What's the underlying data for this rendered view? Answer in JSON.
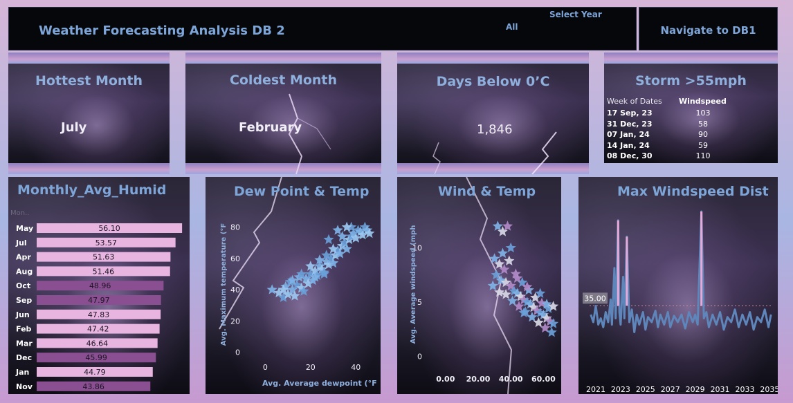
{
  "header": {
    "title": "Weather Forecasting Analysis DB 2",
    "select_year_label": "Select Year",
    "select_year_value": "All",
    "nav_button": "Navigate to DB1"
  },
  "kpis": {
    "hottest": {
      "title": "Hottest Month",
      "value": "July"
    },
    "coldest": {
      "title": "Coldest Month",
      "value": "February"
    },
    "below_zero": {
      "title": "Days Below 0’C",
      "value": "1,846"
    }
  },
  "storm": {
    "title": "Storm >55mph",
    "col_date": "Week of Dates",
    "col_wind": "Windspeed",
    "rows": [
      {
        "date": "17 Sep, 23",
        "wind": "103"
      },
      {
        "date": "31 Dec, 23",
        "wind": "58"
      },
      {
        "date": "07 Jan, 24",
        "wind": "90"
      },
      {
        "date": "14 Jan, 24",
        "wind": "59"
      },
      {
        "date": "08 Dec, 30",
        "wind": "110"
      }
    ]
  },
  "colors": {
    "title": "#7da5d8",
    "bar_light": "#e8b4e0",
    "bar_dark": "#8a4f90",
    "line": "#5f86bb",
    "spike": "#e6a9d8"
  },
  "chart_data": [
    {
      "type": "bar",
      "title": "Monthly_Avg_Humid",
      "header_label": "Mon..",
      "orientation": "horizontal",
      "categories": [
        "May",
        "Jul",
        "Apr",
        "Aug",
        "Oct",
        "Sep",
        "Jun",
        "Feb",
        "Mar",
        "Dec",
        "Jan",
        "Nov"
      ],
      "values": [
        56.1,
        53.57,
        51.63,
        51.46,
        48.96,
        47.97,
        47.83,
        47.42,
        46.64,
        45.99,
        44.79,
        43.86
      ],
      "value_labels": [
        "56.10",
        "53.57",
        "51.63",
        "51.46",
        "48.96",
        "47.97",
        "47.83",
        "47.42",
        "46.64",
        "45.99",
        "44.79",
        "43.86"
      ],
      "shade": [
        "light",
        "light",
        "light",
        "light",
        "dark",
        "dark",
        "light",
        "light",
        "light",
        "dark",
        "light",
        "dark"
      ]
    },
    {
      "type": "scatter",
      "title": "Dew Point & Temp",
      "xlabel": "Avg. Average dewpoint (°F",
      "ylabel": "Avg. Maximum temperature (°F",
      "xticks": [
        "0",
        "20",
        "40"
      ],
      "yticks": [
        "0",
        "20",
        "40",
        "60",
        "80"
      ],
      "xlim": [
        -5,
        50
      ],
      "ylim": [
        -5,
        90
      ],
      "points": [
        [
          3,
          40
        ],
        [
          6,
          38
        ],
        [
          8,
          35
        ],
        [
          9,
          42
        ],
        [
          10,
          37
        ],
        [
          11,
          45
        ],
        [
          12,
          40
        ],
        [
          13,
          36
        ],
        [
          14,
          43
        ],
        [
          15,
          48
        ],
        [
          16,
          41
        ],
        [
          17,
          39
        ],
        [
          18,
          47
        ],
        [
          19,
          44
        ],
        [
          20,
          50
        ],
        [
          21,
          46
        ],
        [
          22,
          52
        ],
        [
          23,
          49
        ],
        [
          24,
          55
        ],
        [
          25,
          53
        ],
        [
          26,
          51
        ],
        [
          27,
          58
        ],
        [
          28,
          56
        ],
        [
          29,
          60
        ],
        [
          30,
          57
        ],
        [
          31,
          62
        ],
        [
          32,
          65
        ],
        [
          33,
          63
        ],
        [
          34,
          68
        ],
        [
          35,
          70
        ],
        [
          36,
          66
        ],
        [
          37,
          72
        ],
        [
          38,
          74
        ],
        [
          39,
          76
        ],
        [
          40,
          73
        ],
        [
          41,
          78
        ],
        [
          42,
          77
        ],
        [
          43,
          75
        ],
        [
          44,
          80
        ],
        [
          45,
          78
        ],
        [
          46,
          76
        ],
        [
          38,
          80
        ],
        [
          34,
          74
        ],
        [
          30,
          66
        ],
        [
          27,
          62
        ],
        [
          24,
          59
        ],
        [
          20,
          55
        ],
        [
          16,
          50
        ],
        [
          12,
          46
        ],
        [
          8,
          40
        ],
        [
          28,
          72
        ],
        [
          32,
          78
        ],
        [
          36,
          80
        ],
        [
          26,
          50
        ],
        [
          22,
          48
        ]
      ]
    },
    {
      "type": "scatter",
      "title": "Wind & Temp",
      "xlabel": "",
      "ylabel": "Avg. Average windspeed (mph",
      "xticks": [
        "0.00",
        "20.00",
        "40.00",
        "60.00"
      ],
      "yticks": [
        "0",
        "5",
        "10"
      ],
      "xlim": [
        -5,
        70
      ],
      "ylim": [
        -1,
        14
      ],
      "points": [
        [
          32,
          12
        ],
        [
          35,
          11.5
        ],
        [
          38,
          12
        ],
        [
          40,
          10
        ],
        [
          30,
          9
        ],
        [
          33,
          8.5
        ],
        [
          36,
          8
        ],
        [
          31,
          7.5
        ],
        [
          34,
          7
        ],
        [
          37,
          6.8
        ],
        [
          40,
          6.5
        ],
        [
          42,
          6
        ],
        [
          44,
          5.8
        ],
        [
          46,
          5.5
        ],
        [
          48,
          5.2
        ],
        [
          50,
          5
        ],
        [
          52,
          4.8
        ],
        [
          54,
          4.5
        ],
        [
          56,
          4.2
        ],
        [
          58,
          4
        ],
        [
          60,
          3.8
        ],
        [
          62,
          3.5
        ],
        [
          64,
          3.2
        ],
        [
          66,
          3
        ],
        [
          35,
          9.5
        ],
        [
          39,
          8.8
        ],
        [
          43,
          7.6
        ],
        [
          47,
          6.8
        ],
        [
          51,
          6.1
        ],
        [
          55,
          5.4
        ],
        [
          59,
          4.9
        ],
        [
          63,
          4.4
        ],
        [
          29,
          6.5
        ],
        [
          33,
          5.9
        ],
        [
          45,
          4.6
        ],
        [
          49,
          4.1
        ],
        [
          53,
          3.6
        ],
        [
          57,
          3.1
        ],
        [
          61,
          2.6
        ],
        [
          65,
          2.2
        ],
        [
          41,
          5.1
        ],
        [
          37,
          5.7
        ],
        [
          50,
          6.4
        ],
        [
          58,
          5.8
        ],
        [
          62,
          4.8
        ],
        [
          66,
          4.6
        ],
        [
          44,
          7.2
        ],
        [
          48,
          4.0
        ]
      ]
    },
    {
      "type": "line",
      "title": "Max Windspeed Dist",
      "xticks": [
        "2021",
        "2023",
        "2025",
        "2027",
        "2029",
        "2031",
        "2033",
        "2035"
      ],
      "reference_label": "35.00",
      "reference_value": 35,
      "x_start": 2020.5,
      "x_end": 2035.2,
      "ylim": [
        0,
        110
      ],
      "points": [
        [
          2020.6,
          28
        ],
        [
          2020.8,
          22
        ],
        [
          2021.0,
          35
        ],
        [
          2021.2,
          20
        ],
        [
          2021.4,
          25
        ],
        [
          2021.6,
          18
        ],
        [
          2021.8,
          30
        ],
        [
          2022.0,
          22
        ],
        [
          2022.2,
          40
        ],
        [
          2022.3,
          20
        ],
        [
          2022.5,
          65
        ],
        [
          2022.6,
          25
        ],
        [
          2022.8,
          103
        ],
        [
          2022.9,
          30
        ],
        [
          2023.0,
          20
        ],
        [
          2023.2,
          58
        ],
        [
          2023.3,
          25
        ],
        [
          2023.5,
          90
        ],
        [
          2023.7,
          22
        ],
        [
          2023.9,
          32
        ],
        [
          2024.1,
          14
        ],
        [
          2024.3,
          28
        ],
        [
          2024.5,
          20
        ],
        [
          2024.8,
          30
        ],
        [
          2025.0,
          16
        ],
        [
          2025.2,
          26
        ],
        [
          2025.5,
          22
        ],
        [
          2025.8,
          31
        ],
        [
          2026.0,
          18
        ],
        [
          2026.2,
          28
        ],
        [
          2026.5,
          20
        ],
        [
          2026.8,
          30
        ],
        [
          2027.0,
          18
        ],
        [
          2027.3,
          27
        ],
        [
          2027.6,
          22
        ],
        [
          2027.9,
          28
        ],
        [
          2028.2,
          17
        ],
        [
          2028.5,
          30
        ],
        [
          2028.8,
          22
        ],
        [
          2029.0,
          28
        ],
        [
          2029.2,
          20
        ],
        [
          2029.5,
          110
        ],
        [
          2029.7,
          25
        ],
        [
          2029.9,
          30
        ],
        [
          2030.1,
          18
        ],
        [
          2030.4,
          28
        ],
        [
          2030.7,
          20
        ],
        [
          2031.0,
          30
        ],
        [
          2031.3,
          16
        ],
        [
          2031.6,
          26
        ],
        [
          2031.9,
          22
        ],
        [
          2032.2,
          32
        ],
        [
          2032.5,
          18
        ],
        [
          2032.8,
          28
        ],
        [
          2033.1,
          20
        ],
        [
          2033.4,
          30
        ],
        [
          2033.7,
          16
        ],
        [
          2034.0,
          26
        ],
        [
          2034.3,
          22
        ],
        [
          2034.6,
          32
        ],
        [
          2034.9,
          18
        ],
        [
          2035.1,
          28
        ]
      ]
    }
  ]
}
